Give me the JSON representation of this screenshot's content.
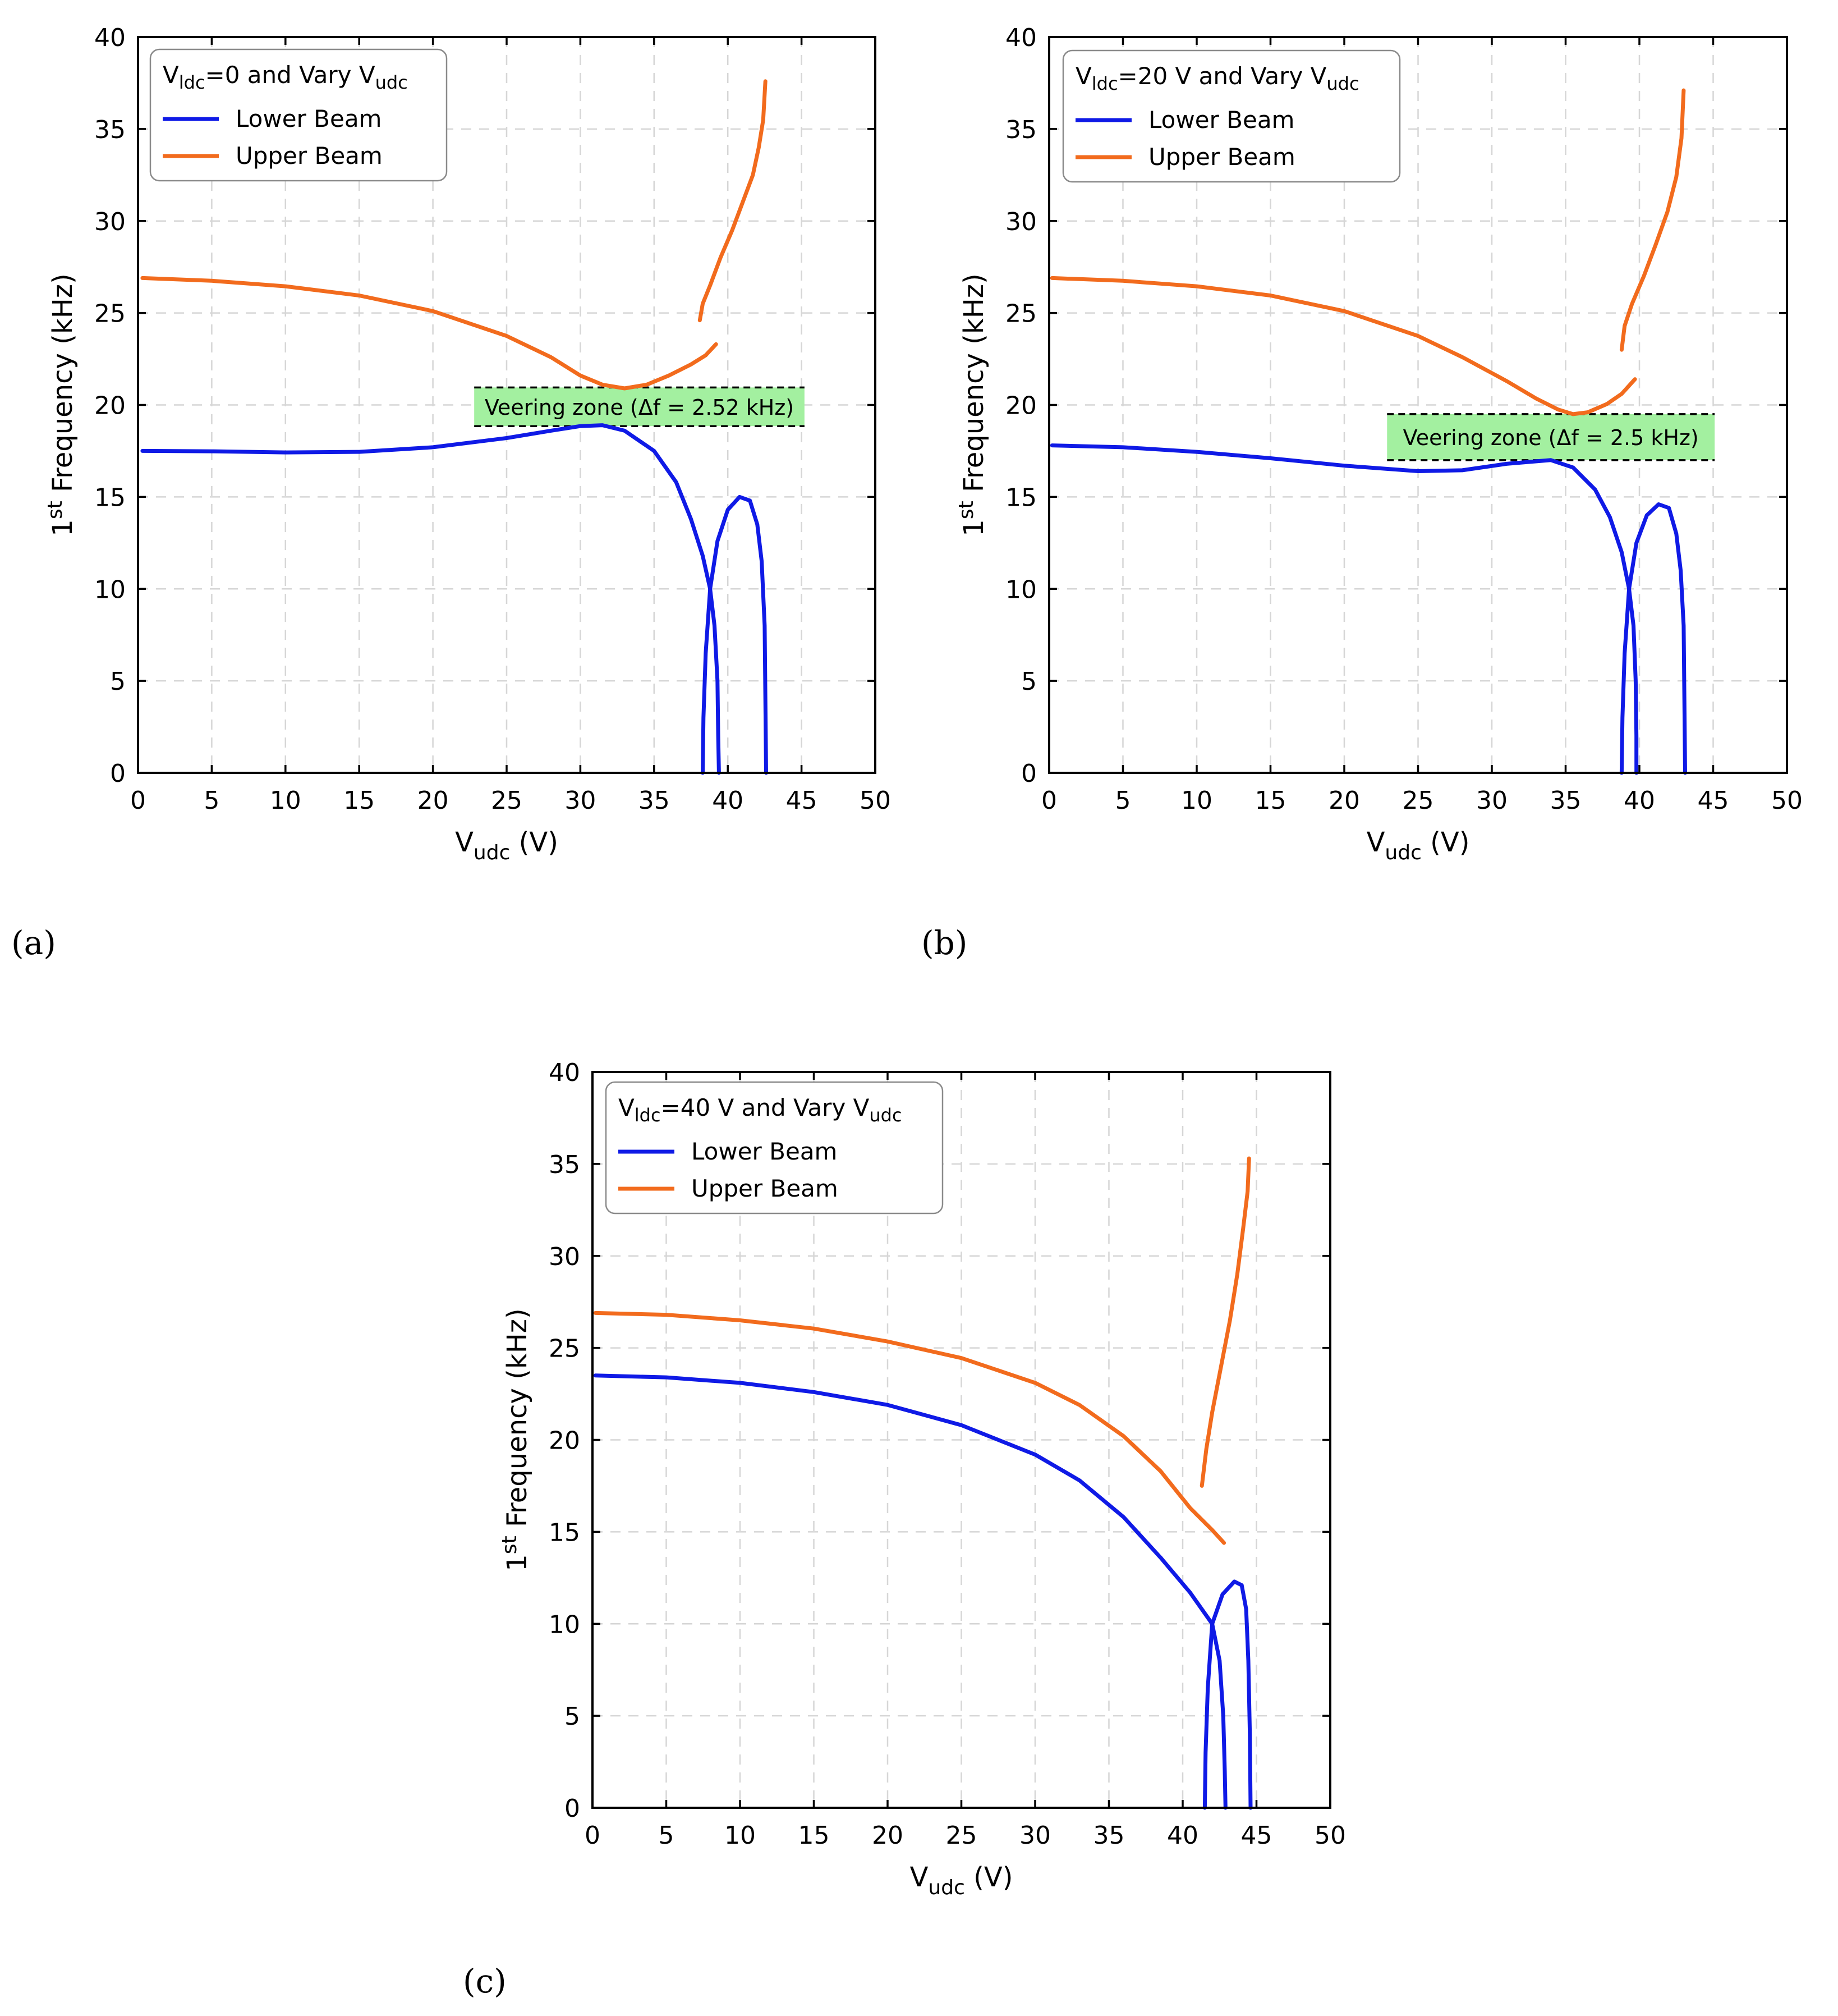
{
  "chart_data": [
    {
      "type": "line",
      "panel_label": "(a)",
      "legend_title": {
        "pre": "V",
        "sub1": "ldc",
        "mid": "=0 and Vary V",
        "sub2": "udc"
      },
      "xlabel": {
        "main": "V",
        "sub": "udc",
        "rest": " (V)"
      },
      "ylabel": {
        "main": "1",
        "sup": "st",
        "rest": " Frequency (kHz)"
      },
      "xlim": [
        0,
        50
      ],
      "ylim": [
        0,
        40
      ],
      "xticks": [
        0,
        5,
        10,
        15,
        20,
        25,
        30,
        35,
        40,
        45,
        50
      ],
      "yticks": [
        0,
        5,
        10,
        15,
        20,
        25,
        30,
        35,
        40
      ],
      "grid": true,
      "legend_position": "top-left",
      "veering_zone": {
        "label": "Veering zone (Δf = 2.52 kHz)",
        "x_range": [
          22.8,
          45.2
        ],
        "y_range": [
          18.85,
          20.95
        ]
      },
      "series": [
        {
          "name": "Lower Beam",
          "color": "#0f1ae6",
          "segments": [
            [
              [
                0.3,
                17.5
              ],
              [
                5,
                17.48
              ],
              [
                10,
                17.42
              ],
              [
                15,
                17.45
              ],
              [
                20,
                17.7
              ],
              [
                25,
                18.2
              ],
              [
                28,
                18.6
              ],
              [
                30,
                18.85
              ],
              [
                31.5,
                18.9
              ],
              [
                33,
                18.6
              ],
              [
                35,
                17.5
              ],
              [
                36.5,
                15.8
              ],
              [
                37.5,
                13.8
              ],
              [
                38.3,
                11.8
              ],
              [
                38.8,
                10
              ],
              [
                39.1,
                8
              ],
              [
                39.3,
                5
              ],
              [
                39.35,
                2
              ],
              [
                39.4,
                0
              ]
            ],
            [
              [
                38.3,
                0
              ],
              [
                38.35,
                3
              ],
              [
                38.5,
                6.5
              ],
              [
                38.8,
                10
              ],
              [
                39.3,
                12.6
              ],
              [
                40,
                14.3
              ],
              [
                40.8,
                15
              ],
              [
                41.5,
                14.8
              ],
              [
                42,
                13.5
              ],
              [
                42.3,
                11.5
              ],
              [
                42.5,
                8
              ],
              [
                42.55,
                4
              ],
              [
                42.6,
                0
              ]
            ]
          ]
        },
        {
          "name": "Upper Beam",
          "color": "#f26b1d",
          "segments": [
            [
              [
                0.3,
                26.9
              ],
              [
                5,
                26.75
              ],
              [
                10,
                26.45
              ],
              [
                15,
                25.95
              ],
              [
                20,
                25.1
              ],
              [
                25,
                23.75
              ],
              [
                28,
                22.6
              ],
              [
                30,
                21.6
              ],
              [
                31.5,
                21.1
              ],
              [
                33,
                20.9
              ],
              [
                34.5,
                21.1
              ],
              [
                36,
                21.6
              ],
              [
                37.5,
                22.2
              ],
              [
                38.5,
                22.7
              ],
              [
                39.2,
                23.3
              ]
            ],
            [
              [
                38.1,
                24.6
              ],
              [
                38.3,
                25.5
              ],
              [
                38.8,
                26.5
              ],
              [
                39.5,
                28
              ],
              [
                40.3,
                29.5
              ],
              [
                41,
                31
              ],
              [
                41.7,
                32.5
              ],
              [
                42.1,
                34
              ],
              [
                42.4,
                35.5
              ],
              [
                42.55,
                37.6
              ]
            ]
          ]
        }
      ]
    },
    {
      "type": "line",
      "panel_label": "(b)",
      "legend_title": {
        "pre": "V",
        "sub1": "ldc",
        "mid": "=20 V and Vary V",
        "sub2": "udc"
      },
      "xlabel": {
        "main": "V",
        "sub": "udc",
        "rest": " (V)"
      },
      "ylabel": {
        "main": "1",
        "sup": "st",
        "rest": " Frequency (kHz)"
      },
      "xlim": [
        0,
        50
      ],
      "ylim": [
        0,
        40
      ],
      "xticks": [
        0,
        5,
        10,
        15,
        20,
        25,
        30,
        35,
        40,
        45,
        50
      ],
      "yticks": [
        0,
        5,
        10,
        15,
        20,
        25,
        30,
        35,
        40
      ],
      "grid": true,
      "legend_position": "top-left",
      "veering_zone": {
        "label": "Veering zone (Δf = 2.5 kHz)",
        "x_range": [
          22.9,
          45.1
        ],
        "y_range": [
          17.0,
          19.5
        ]
      },
      "series": [
        {
          "name": "Lower Beam",
          "color": "#0f1ae6",
          "segments": [
            [
              [
                0.2,
                17.8
              ],
              [
                5,
                17.7
              ],
              [
                10,
                17.45
              ],
              [
                15,
                17.1
              ],
              [
                20,
                16.7
              ],
              [
                25,
                16.4
              ],
              [
                28,
                16.45
              ],
              [
                31,
                16.8
              ],
              [
                34,
                17.0
              ],
              [
                35.5,
                16.6
              ],
              [
                37,
                15.4
              ],
              [
                38,
                13.9
              ],
              [
                38.8,
                12
              ],
              [
                39.3,
                10
              ],
              [
                39.6,
                8
              ],
              [
                39.75,
                5
              ],
              [
                39.8,
                2
              ],
              [
                39.8,
                0
              ]
            ],
            [
              [
                38.8,
                0
              ],
              [
                38.85,
                3
              ],
              [
                39,
                6.5
              ],
              [
                39.3,
                10
              ],
              [
                39.8,
                12.5
              ],
              [
                40.5,
                14
              ],
              [
                41.3,
                14.6
              ],
              [
                42,
                14.4
              ],
              [
                42.5,
                13
              ],
              [
                42.8,
                11
              ],
              [
                43,
                8
              ],
              [
                43.05,
                4
              ],
              [
                43.1,
                0
              ]
            ]
          ]
        },
        {
          "name": "Upper Beam",
          "color": "#f26b1d",
          "segments": [
            [
              [
                0.2,
                26.9
              ],
              [
                5,
                26.75
              ],
              [
                10,
                26.45
              ],
              [
                15,
                25.95
              ],
              [
                20,
                25.1
              ],
              [
                25,
                23.75
              ],
              [
                28,
                22.6
              ],
              [
                31,
                21.3
              ],
              [
                33,
                20.35
              ],
              [
                34.5,
                19.75
              ],
              [
                35.5,
                19.5
              ],
              [
                36.5,
                19.6
              ],
              [
                37.8,
                20.05
              ],
              [
                38.8,
                20.6
              ],
              [
                39.7,
                21.4
              ]
            ],
            [
              [
                38.8,
                23
              ],
              [
                39,
                24.3
              ],
              [
                39.5,
                25.5
              ],
              [
                40.3,
                27
              ],
              [
                41.1,
                28.7
              ],
              [
                41.9,
                30.5
              ],
              [
                42.5,
                32.4
              ],
              [
                42.85,
                34.5
              ],
              [
                43,
                37.1
              ]
            ]
          ]
        }
      ]
    },
    {
      "type": "line",
      "panel_label": "(c)",
      "legend_title": {
        "pre": "V",
        "sub1": "ldc",
        "mid": "=40 V and Vary V",
        "sub2": "udc"
      },
      "xlabel": {
        "main": "V",
        "sub": "udc",
        "rest": " (V)"
      },
      "ylabel": {
        "main": "1",
        "sup": "st",
        "rest": " Frequency (kHz)"
      },
      "xlim": [
        0,
        50
      ],
      "ylim": [
        0,
        40
      ],
      "xticks": [
        0,
        5,
        10,
        15,
        20,
        25,
        30,
        35,
        40,
        45,
        50
      ],
      "yticks": [
        0,
        5,
        10,
        15,
        20,
        25,
        30,
        35,
        40
      ],
      "grid": true,
      "legend_position": "top-left",
      "series": [
        {
          "name": "Lower Beam",
          "color": "#0f1ae6",
          "segments": [
            [
              [
                0.2,
                23.5
              ],
              [
                5,
                23.4
              ],
              [
                10,
                23.1
              ],
              [
                15,
                22.6
              ],
              [
                20,
                21.9
              ],
              [
                25,
                20.8
              ],
              [
                30,
                19.2
              ],
              [
                33,
                17.8
              ],
              [
                36,
                15.8
              ],
              [
                38.5,
                13.6
              ],
              [
                40.5,
                11.7
              ],
              [
                42,
                10
              ],
              [
                42.5,
                8
              ],
              [
                42.75,
                5
              ],
              [
                42.85,
                2
              ],
              [
                42.9,
                0
              ]
            ],
            [
              [
                41.5,
                0
              ],
              [
                41.55,
                3
              ],
              [
                41.7,
                6.5
              ],
              [
                42,
                10
              ],
              [
                42.7,
                11.6
              ],
              [
                43.5,
                12.3
              ],
              [
                44,
                12.1
              ],
              [
                44.3,
                10.8
              ],
              [
                44.45,
                8
              ],
              [
                44.55,
                4
              ],
              [
                44.6,
                0
              ]
            ]
          ]
        },
        {
          "name": "Upper Beam",
          "color": "#f26b1d",
          "segments": [
            [
              [
                0.2,
                26.9
              ],
              [
                5,
                26.8
              ],
              [
                10,
                26.5
              ],
              [
                15,
                26.05
              ],
              [
                20,
                25.35
              ],
              [
                25,
                24.45
              ],
              [
                30,
                23.1
              ],
              [
                33,
                21.9
              ],
              [
                36,
                20.2
              ],
              [
                38.5,
                18.3
              ],
              [
                40.5,
                16.3
              ],
              [
                42,
                15.1
              ],
              [
                42.8,
                14.4
              ]
            ],
            [
              [
                41.3,
                17.5
              ],
              [
                41.6,
                19.5
              ],
              [
                42,
                21.5
              ],
              [
                42.6,
                24
              ],
              [
                43.2,
                26.5
              ],
              [
                43.7,
                29
              ],
              [
                44.1,
                31.5
              ],
              [
                44.4,
                33.5
              ],
              [
                44.5,
                35.3
              ]
            ]
          ]
        }
      ]
    }
  ]
}
